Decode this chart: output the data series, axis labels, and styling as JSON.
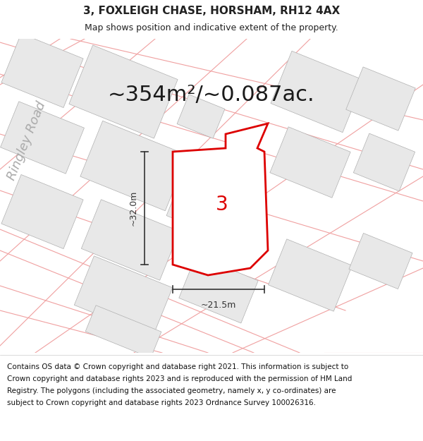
{
  "title": "3, FOXLEIGH CHASE, HORSHAM, RH12 4AX",
  "subtitle": "Map shows position and indicative extent of the property.",
  "area_text": "~354m²/~0.087ac.",
  "dim_width": "~21.5m",
  "dim_height": "~32.0m",
  "plot_number": "3",
  "footer": "Contains OS data © Crown copyright and database right 2021. This information is subject to Crown copyright and database rights 2023 and is reproduced with the permission of HM Land Registry. The polygons (including the associated geometry, namely x, y co-ordinates) are subject to Crown copyright and database rights 2023 Ordnance Survey 100026316.",
  "bg_color": "#ffffff",
  "map_bg": "#ffffff",
  "bldg_fill": "#e8e8e8",
  "bldg_edge": "#b0b0b0",
  "road_line_color": "#f0a0a0",
  "plot_fill": "#ffffff",
  "plot_edge": "#dd0000",
  "road_label_color": "#aaaaaa",
  "title_fontsize": 11,
  "subtitle_fontsize": 9,
  "area_fontsize": 22,
  "footer_fontsize": 7.5,
  "dim_fontsize": 9,
  "plot_num_fontsize": 20,
  "road_fontsize": 13,
  "title_color": "#222222",
  "footer_color": "#111111"
}
